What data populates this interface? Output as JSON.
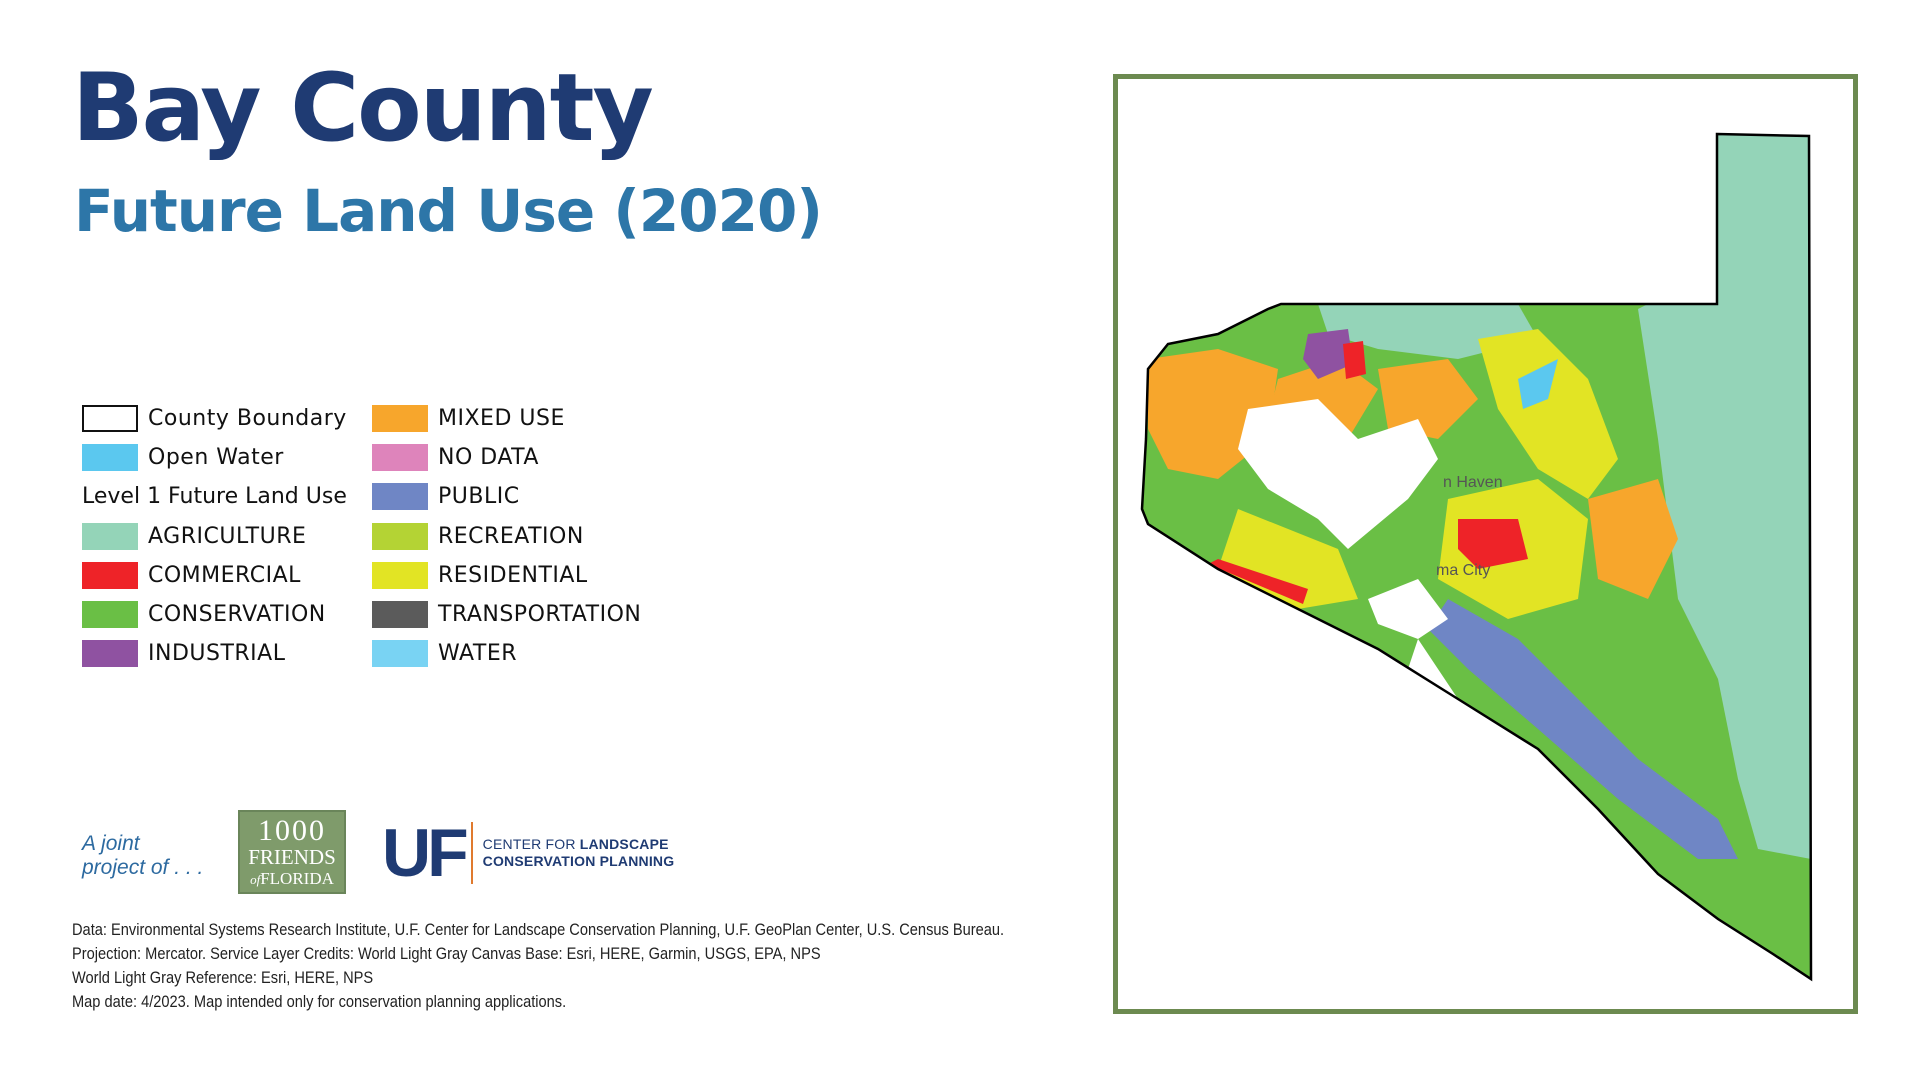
{
  "title": "Bay County",
  "subtitle": "Future Land Use (2020)",
  "legend": {
    "county_boundary": "County Boundary",
    "open_water": "Open Water",
    "heading": "Level 1 Future Land Use",
    "items": [
      {
        "label": "AGRICULTURE",
        "color": "#94d4b8"
      },
      {
        "label": "COMMERCIAL",
        "color": "#ee2328"
      },
      {
        "label": "CONSERVATION",
        "color": "#6abf45"
      },
      {
        "label": "INDUSTRIAL",
        "color": "#8f52a1"
      },
      {
        "label": "MIXED USE",
        "color": "#f7a62c"
      },
      {
        "label": "NO DATA",
        "color": "#de84bb"
      },
      {
        "label": "PUBLIC",
        "color": "#6f86c5"
      },
      {
        "label": "RECREATION",
        "color": "#b4d334"
      },
      {
        "label": "RESIDENTIAL",
        "color": "#e2e424"
      },
      {
        "label": "TRANSPORTATION",
        "color": "#5b5b5b"
      },
      {
        "label": "WATER",
        "color": "#79d3f3"
      }
    ],
    "open_water_color": "#5bc8ef"
  },
  "logos": {
    "joint_line1": "A joint",
    "joint_line2": "project of . . .",
    "friends_line1": "1000",
    "friends_line2": "FRIENDS",
    "friends_of": "of",
    "friends_line3": "FLORIDA",
    "uf_mark": "UF",
    "uf_line1": "CENTER FOR",
    "uf_line1_bold": "LANDSCAPE",
    "uf_line2": "CONSERVATION PLANNING"
  },
  "credits": [
    "Data: Environmental Systems Research Institute, U.F. Center for Landscape Conservation Planning, U.F. GeoPlan Center, U.S. Census Bureau.",
    "Projection: Mercator. Service Layer Credits: World Light Gray Canvas Base: Esri, HERE, Garmin, USGS, EPA, NPS",
    "World Light Gray Reference: Esri, HERE, NPS",
    "Map date: 4/2023. Map intended only for conservation planning applications."
  ],
  "map": {
    "frame_color": "#6c8a50",
    "city_labels": [
      "n Haven",
      "ma City"
    ]
  }
}
